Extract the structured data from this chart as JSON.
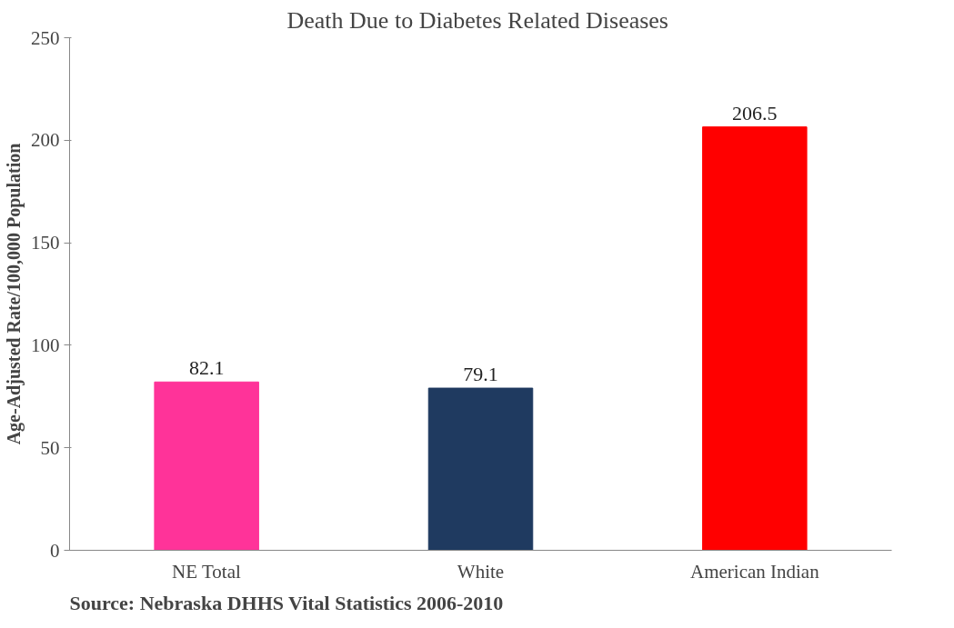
{
  "chart_data": {
    "type": "bar",
    "title": "Death  Due to Diabetes Related Diseases",
    "ylabel": "Age-Adjusted Rate/100,000 Population",
    "categories": [
      "NE Total",
      "White",
      "American Indian"
    ],
    "values": [
      82.1,
      79.1,
      206.5
    ],
    "colors": [
      "#ff3399",
      "#1f3a60",
      "#ff0000"
    ],
    "ylim": [
      0,
      250
    ],
    "yticks": [
      0,
      50,
      100,
      150,
      200,
      250
    ],
    "grid": false,
    "data_labels": true,
    "annotations": [
      "Source: Nebraska DHHS Vital Statistics 2006-2010"
    ]
  }
}
